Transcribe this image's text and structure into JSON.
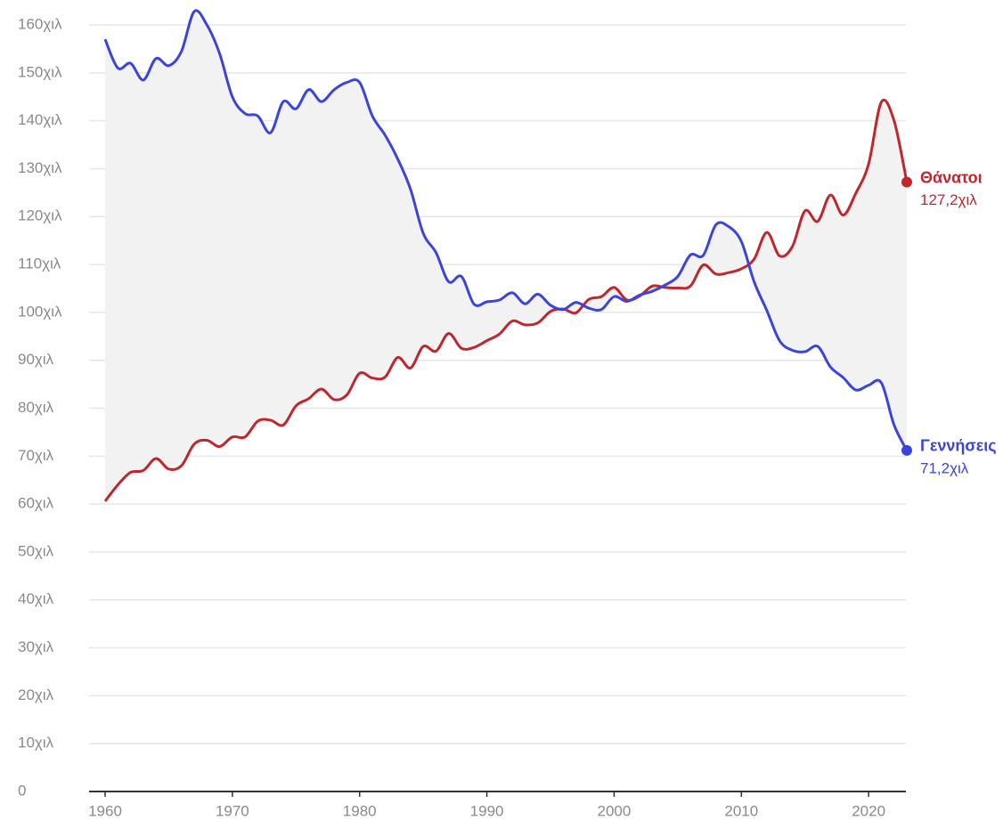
{
  "chart_data": {
    "type": "line",
    "x": [
      1960,
      1961,
      1962,
      1963,
      1964,
      1965,
      1966,
      1967,
      1968,
      1969,
      1970,
      1971,
      1972,
      1973,
      1974,
      1975,
      1976,
      1977,
      1978,
      1979,
      1980,
      1981,
      1982,
      1983,
      1984,
      1985,
      1986,
      1987,
      1988,
      1989,
      1990,
      1991,
      1992,
      1993,
      1994,
      1995,
      1996,
      1997,
      1998,
      1999,
      2000,
      2001,
      2002,
      2003,
      2004,
      2005,
      2006,
      2007,
      2008,
      2009,
      2010,
      2011,
      2012,
      2013,
      2014,
      2015,
      2016,
      2017,
      2018,
      2019,
      2020,
      2021,
      2022,
      2023
    ],
    "series": [
      {
        "name": "Θάνατοι",
        "color": "#c0272d",
        "values": [
          60.6,
          64,
          66.6,
          67,
          69.5,
          67.3,
          68,
          72.5,
          73.3,
          72,
          74,
          74,
          77.3,
          77.5,
          76.5,
          80.5,
          82,
          84,
          81.8,
          82.8,
          87.3,
          86.3,
          86.5,
          90.6,
          88.4,
          92.9,
          91.9,
          95.6,
          92.5,
          92.7,
          94.1,
          95.5,
          98.2,
          97.4,
          97.8,
          100.2,
          100.7,
          99.9,
          102.7,
          103.3,
          105.2,
          102.6,
          103.4,
          105.5,
          105.2,
          105.1,
          105.5,
          109.9,
          108,
          108.3,
          109.1,
          111.1,
          116.7,
          111.8,
          113.7,
          121.2,
          119,
          124.5,
          120.3,
          124.9,
          131,
          143.9,
          140,
          127.2
        ],
        "value_labels": [
          null,
          null,
          null,
          null,
          null,
          null,
          null,
          null,
          null,
          null,
          null,
          null,
          null,
          null,
          null,
          null,
          null,
          null,
          null,
          null,
          null,
          null,
          null,
          null,
          null,
          null,
          null,
          null,
          null,
          null,
          null,
          null,
          null,
          null,
          null,
          null,
          null,
          null,
          null,
          null,
          null,
          null,
          null,
          null,
          null,
          null,
          null,
          null,
          null,
          null,
          null,
          null,
          null,
          null,
          null,
          null,
          null,
          null,
          null,
          null,
          null,
          null,
          null,
          "127,2χιλ"
        ]
      },
      {
        "name": "Γεννήσεις",
        "color": "#3b45d9",
        "values": [
          157,
          151,
          152,
          148.5,
          153,
          151.5,
          154.5,
          162.8,
          160,
          154,
          145,
          141.5,
          141,
          137.5,
          144,
          142.5,
          146.5,
          144,
          146.5,
          148,
          148,
          141,
          137,
          132,
          125.7,
          116.5,
          112.5,
          106.4,
          107.5,
          101.7,
          102.2,
          102.6,
          104.1,
          101.8,
          103.8,
          101.5,
          100.6,
          102.1,
          100.9,
          100.6,
          103.3,
          102.3,
          103.6,
          104.4,
          105.7,
          107.5,
          112,
          111.9,
          118.3,
          117.9,
          114.8,
          106.4,
          100.4,
          94.1,
          92.1,
          91.8,
          92.9,
          88.6,
          86.4,
          83.8,
          84.8,
          85.3,
          76.5,
          71.2
        ],
        "value_labels": [
          null,
          null,
          null,
          null,
          null,
          null,
          null,
          null,
          null,
          null,
          null,
          null,
          null,
          null,
          null,
          null,
          null,
          null,
          null,
          null,
          null,
          null,
          null,
          null,
          null,
          null,
          null,
          null,
          null,
          null,
          null,
          null,
          null,
          null,
          null,
          null,
          null,
          null,
          null,
          null,
          null,
          null,
          null,
          null,
          null,
          null,
          null,
          null,
          null,
          null,
          null,
          null,
          null,
          null,
          null,
          null,
          null,
          null,
          null,
          null,
          null,
          null,
          null,
          "71,2χιλ"
        ]
      }
    ],
    "xlim": [
      1960,
      2023
    ],
    "xticks": [
      1960,
      1970,
      1980,
      1990,
      2000,
      2010,
      2020
    ],
    "ylim": [
      0,
      160
    ],
    "yticks": [
      0,
      {
        "value": 10,
        "label": "10χιλ"
      },
      {
        "value": 20,
        "label": "20χιλ"
      },
      {
        "value": 30,
        "label": "30χιλ"
      },
      {
        "value": 40,
        "label": "40χιλ"
      },
      {
        "value": 50,
        "label": "50χιλ"
      },
      {
        "value": 60,
        "label": "60χιλ"
      },
      {
        "value": 70,
        "label": "70χιλ"
      },
      {
        "value": 80,
        "label": "80χιλ"
      },
      {
        "value": 90,
        "label": "90χιλ"
      },
      {
        "value": 100,
        "label": "100χιλ"
      },
      {
        "value": 110,
        "label": "110χιλ"
      },
      {
        "value": 120,
        "label": "120χιλ"
      },
      {
        "value": 130,
        "label": "130χιλ"
      },
      {
        "value": 140,
        "label": "140χιλ"
      },
      {
        "value": 150,
        "label": "150χιλ"
      },
      {
        "value": 160,
        "label": "160χιλ"
      }
    ],
    "grid": true
  }
}
